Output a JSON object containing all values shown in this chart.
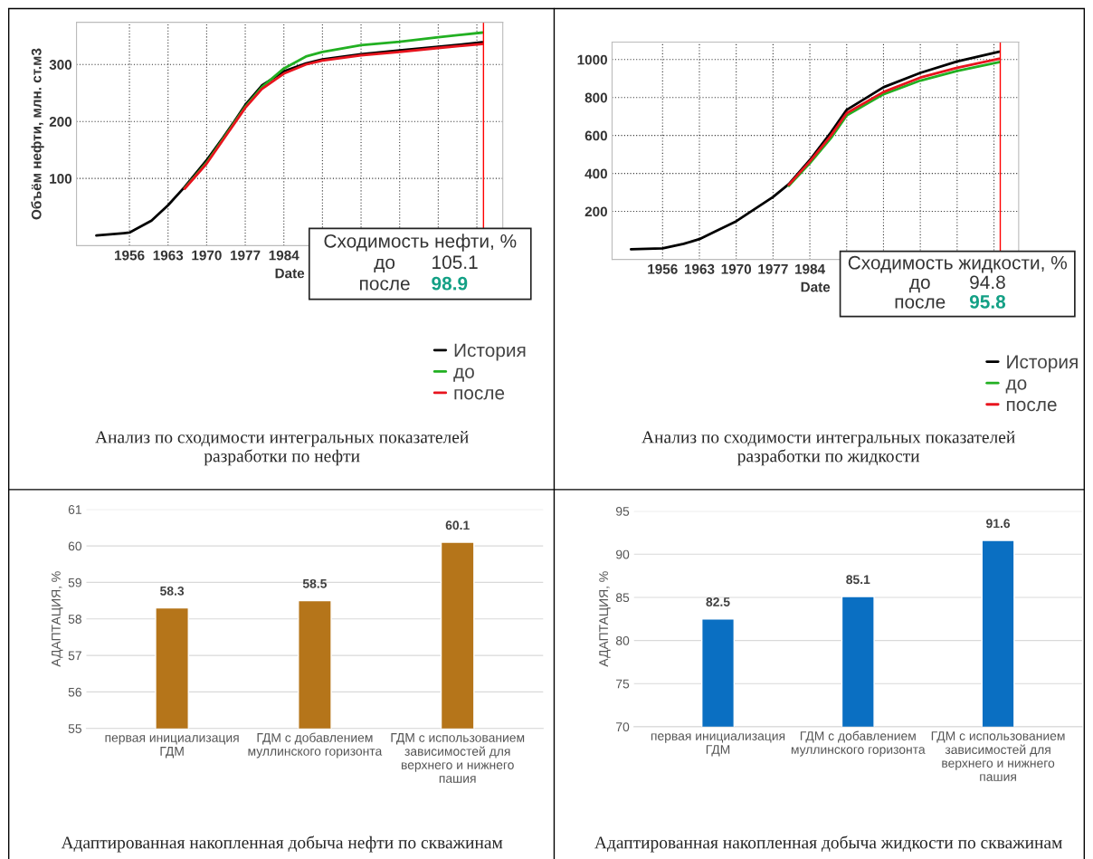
{
  "chart_data": [
    {
      "type": "line",
      "xlabel": "Date",
      "ylabel": "Объём нефти, млн. ст.м3",
      "xlim": [
        1946.4,
        2023.7
      ],
      "ylim": [
        -18,
        374
      ],
      "xticks": [
        1956,
        1963,
        1970,
        1977,
        1984,
        {
          "value": 1991,
          "label": null
        },
        {
          "value": 1998,
          "label": null
        },
        {
          "value": 2005,
          "label": null
        },
        {
          "value": 2012,
          "label": null
        },
        {
          "value": 2019,
          "label": null
        }
      ],
      "yticks": [
        100,
        200,
        300
      ],
      "grid": true,
      "legend": "bottom right",
      "series": [
        {
          "name": "История",
          "color": "#000000",
          "x": [
            1950,
            1955,
            1956,
            1960,
            1963,
            1966,
            1970,
            1973,
            1975,
            1977,
            1980,
            1984,
            1988,
            1991,
            1998,
            2005,
            2012,
            2020
          ],
          "values": [
            0,
            4,
            5,
            26,
            53,
            85,
            132,
            172,
            200,
            229,
            263,
            288,
            302,
            309,
            318,
            325,
            331,
            339
          ]
        },
        {
          "name": "до",
          "color": "#22b022",
          "x": [
            1966,
            1970,
            1977,
            1980,
            1984,
            1988,
            1991,
            1998,
            2005,
            2012,
            2020
          ],
          "values": [
            83,
            128,
            226,
            260,
            293,
            314,
            322,
            334,
            340,
            348,
            356
          ]
        },
        {
          "name": "после",
          "color": "#e8141e",
          "x": [
            1966,
            1970,
            1977,
            1980,
            1984,
            1988,
            1991,
            1998,
            2005,
            2012,
            2020
          ],
          "values": [
            82,
            126,
            224,
            257,
            284,
            300,
            307,
            316,
            322,
            329,
            336
          ]
        }
      ],
      "ref_lines": [
        {
          "axis": "x",
          "value": 2020.2,
          "color": "#ff0000"
        }
      ],
      "annotations": [
        "Сходимость нефти, %",
        "до",
        "105.1",
        "после",
        "98.9",
        "Анализ по сходимости интегральных показателей\nразработки по нефти"
      ]
    },
    {
      "type": "line",
      "xlabel": "Date",
      "xlim": [
        1946.4,
        2023.7
      ],
      "ylim": [
        -53,
        1092
      ],
      "xticks": [
        1956,
        1963,
        1970,
        1977,
        1984,
        {
          "value": 1991,
          "label": null
        },
        {
          "value": 1998,
          "label": null
        },
        {
          "value": 2005,
          "label": null
        },
        {
          "value": 2012,
          "label": null
        },
        {
          "value": 2019,
          "label": null
        }
      ],
      "yticks": [
        200,
        400,
        600,
        800,
        1000
      ],
      "grid": true,
      "legend": "bottom right",
      "series": [
        {
          "name": "История",
          "color": "#000000",
          "x": [
            1950,
            1956,
            1960,
            1963,
            1970,
            1977,
            1980,
            1984,
            1988,
            1991,
            1995,
            1998,
            2005,
            2012,
            2020
          ],
          "values": [
            0,
            5,
            29,
            54,
            148,
            276,
            344,
            471,
            616,
            735,
            803,
            854,
            930,
            990,
            1041
          ]
        },
        {
          "name": "до",
          "color": "#22b022",
          "x": [
            1980,
            1984,
            1988,
            1991,
            1998,
            2005,
            2012,
            2020
          ],
          "values": [
            335,
            454,
            586,
            705,
            817,
            889,
            940,
            987
          ]
        },
        {
          "name": "после",
          "color": "#e8141e",
          "x": [
            1980,
            1984,
            1988,
            1991,
            1998,
            2005,
            2012,
            2020
          ],
          "values": [
            340,
            463,
            599,
            718,
            829,
            905,
            957,
            1004
          ]
        }
      ],
      "ref_lines": [
        {
          "axis": "x",
          "value": 2020.2,
          "color": "#ff0000"
        }
      ],
      "annotations": [
        "Сходимость жидкости, %",
        "до",
        "94.8",
        "после",
        "95.8",
        "Анализ по сходимости интегральных показателей\nразработки по жидкости"
      ]
    },
    {
      "type": "bar",
      "ylabel": "АДАПТАЦИЯ, %",
      "categories": [
        "первая инициализация\nГДМ",
        "ГДМ с добавлением\nмуллинского горизонта",
        "ГДМ с использованием\nзависимостей для\nверхнего и нижнего\nпашия"
      ],
      "values": [
        58.3,
        58.5,
        60.1
      ],
      "color": "#b5751a",
      "ylim": [
        55,
        61
      ],
      "yticks": [
        55,
        56,
        57,
        58,
        59,
        60,
        61
      ],
      "grid": "y",
      "data_labels": true,
      "annotations": [
        "Адаптированная накопленная добыча нефти по скважинам"
      ]
    },
    {
      "type": "bar",
      "ylabel": "АДАПТАЦИЯ, %",
      "categories": [
        "первая инициализация\nГДМ",
        "ГДМ с добавлением\nмуллинского горизонта",
        "ГДМ с использованием\nзависимостей для\nверхнего и нижнего\nпашия"
      ],
      "values": [
        82.5,
        85.1,
        91.6
      ],
      "color": "#0a6fc2",
      "ylim": [
        70,
        95
      ],
      "yticks": [
        70,
        75,
        80,
        85,
        90,
        95
      ],
      "grid": "y",
      "data_labels": true,
      "annotations": [
        "Адаптированная накопленная добыча жидкости по скважинам"
      ]
    }
  ]
}
